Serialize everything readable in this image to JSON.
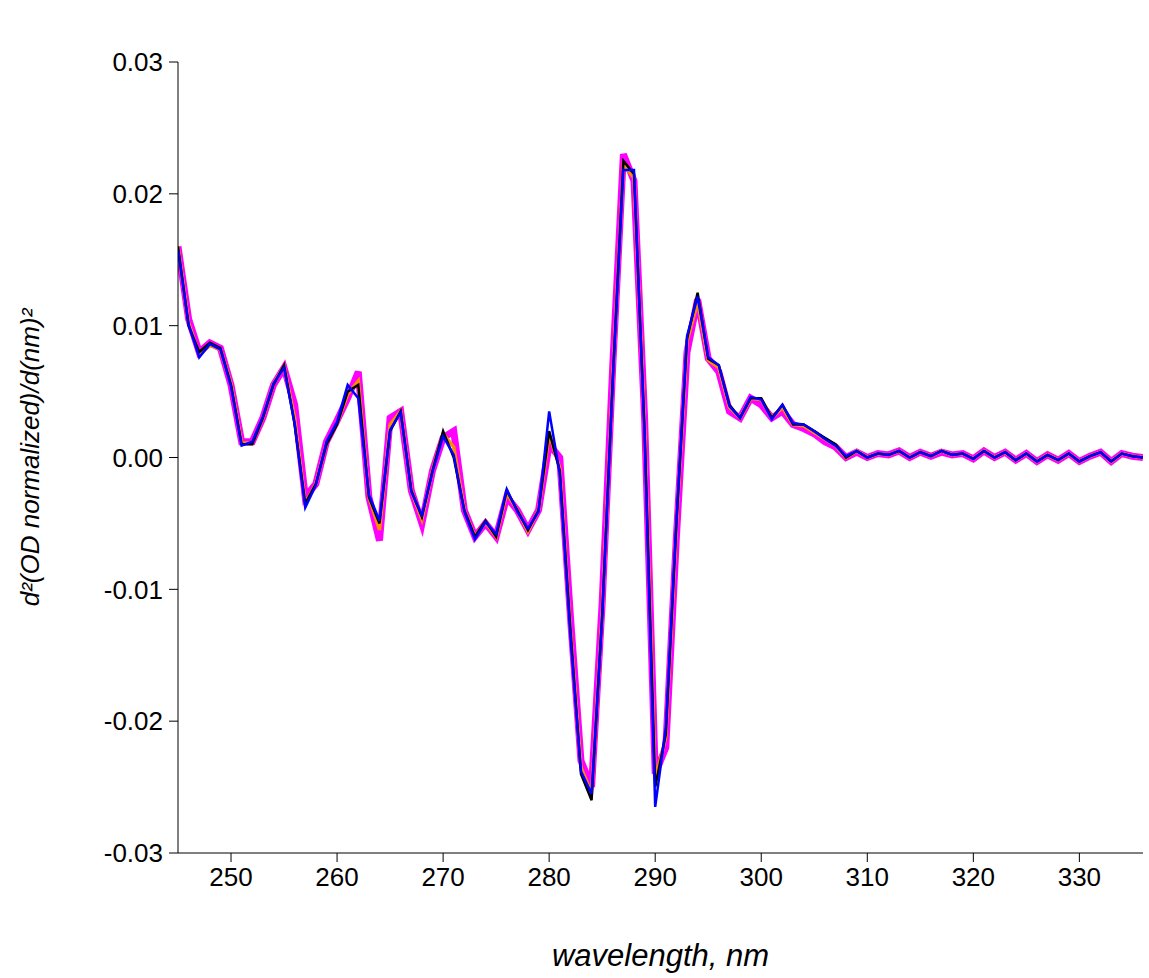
{
  "chart_data": {
    "type": "line",
    "x_label": "wavelength, nm",
    "y_label": "d²(OD normalized)/d(nm)²",
    "x": [
      245,
      246,
      247,
      248,
      249,
      250,
      251,
      252,
      253,
      254,
      255,
      256,
      257,
      258,
      259,
      260,
      261,
      262,
      263,
      264,
      265,
      266,
      267,
      268,
      269,
      270,
      271,
      272,
      273,
      274,
      275,
      276,
      277,
      278,
      279,
      280,
      281,
      282,
      283,
      284,
      285,
      286,
      287,
      288,
      289,
      290,
      291,
      292,
      293,
      294,
      295,
      296,
      297,
      298,
      299,
      300,
      301,
      302,
      303,
      304,
      305,
      306,
      307,
      308,
      309,
      310,
      311,
      312,
      313,
      314,
      315,
      316,
      317,
      318,
      319,
      320,
      321,
      322,
      323,
      324,
      325,
      326,
      327,
      328,
      329,
      330,
      331,
      332,
      333,
      334,
      335,
      336
    ],
    "series": [
      {
        "color": "#ff00ff",
        "values": [
          0.016,
          0.0105,
          0.008,
          0.0087,
          0.0083,
          0.0055,
          0.0012,
          0.0012,
          0.003,
          0.0055,
          0.0068,
          0.004,
          -0.003,
          -0.002,
          0.0012,
          0.0028,
          0.0045,
          0.0065,
          -0.003,
          -0.0063,
          0.003,
          0.0035,
          -0.0025,
          -0.005,
          -0.001,
          0.0015,
          0.002,
          -0.004,
          -0.006,
          -0.005,
          -0.006,
          -0.003,
          -0.004,
          -0.0055,
          -0.004,
          0.001,
          0.0,
          -0.012,
          -0.023,
          -0.025,
          -0.011,
          0.007,
          0.023,
          0.021,
          0.003,
          -0.024,
          -0.022,
          -0.006,
          0.008,
          0.012,
          0.0075,
          0.0065,
          0.0035,
          0.003,
          0.0045,
          0.004,
          0.003,
          0.0035,
          0.0025,
          0.0022,
          0.0018,
          0.0012,
          0.0008,
          0.0,
          0.0004,
          0.0,
          0.0003,
          0.0002,
          0.0005,
          0.0,
          0.0004,
          0.0001,
          0.0004,
          0.0002,
          0.0003,
          -0.0001,
          0.0005,
          0.0,
          0.0004,
          -0.0002,
          0.0003,
          -0.0003,
          0.0002,
          -0.0002,
          0.0003,
          -0.0003,
          0.0001,
          0.0004,
          -0.0003,
          0.0003,
          0.0001,
          0.0
        ]
      },
      {
        "color": "#ff8c00",
        "values": [
          0.016,
          0.0102,
          0.0078,
          0.0085,
          0.0082,
          0.0056,
          0.0011,
          0.0011,
          0.003,
          0.0056,
          0.0069,
          0.003,
          -0.0035,
          -0.002,
          0.0011,
          0.0026,
          0.0048,
          0.0058,
          -0.003,
          -0.0055,
          0.0025,
          0.0035,
          -0.0025,
          -0.0047,
          -0.001,
          0.0018,
          0.0008,
          -0.004,
          -0.006,
          -0.0049,
          -0.006,
          -0.0027,
          -0.004,
          -0.0056,
          -0.004,
          0.0018,
          -0.0008,
          -0.013,
          -0.0235,
          -0.0255,
          -0.0118,
          0.0062,
          0.0222,
          0.0212,
          0.0025,
          -0.0245,
          -0.0212,
          -0.0052,
          0.0088,
          0.0118,
          0.0074,
          0.0068,
          0.0038,
          0.003,
          0.0045,
          0.0044,
          0.003,
          0.0038,
          0.0025,
          0.0024,
          0.0019,
          0.0014,
          0.0009,
          0.0,
          0.0005,
          0.0,
          0.0003,
          0.0002,
          0.0005,
          0.0,
          0.0004,
          0.0001,
          0.0005,
          0.0002,
          0.0003,
          -0.0001,
          0.0005,
          0.0,
          0.0004,
          -0.0002,
          0.0003,
          -0.0003,
          0.0002,
          -0.0002,
          0.0003,
          -0.0003,
          0.0001,
          0.0004,
          -0.0003,
          0.0003,
          0.0001,
          0.0
        ]
      },
      {
        "color": "#000000",
        "values": [
          0.016,
          0.01,
          0.008,
          0.0087,
          0.0083,
          0.0055,
          0.001,
          0.001,
          0.003,
          0.0055,
          0.007,
          0.0025,
          -0.0035,
          -0.002,
          0.001,
          0.0025,
          0.005,
          0.0055,
          -0.003,
          -0.005,
          0.002,
          0.0035,
          -0.0025,
          -0.0045,
          -0.001,
          0.002,
          0.0,
          -0.004,
          -0.006,
          -0.0048,
          -0.006,
          -0.0025,
          -0.004,
          -0.0055,
          -0.004,
          0.002,
          -0.001,
          -0.013,
          -0.024,
          -0.026,
          -0.012,
          0.006,
          0.0225,
          0.0215,
          0.002,
          -0.025,
          -0.021,
          -0.005,
          0.009,
          0.0125,
          0.0075,
          0.007,
          0.004,
          0.003,
          0.0045,
          0.0045,
          0.003,
          0.004,
          0.0025,
          0.0025,
          0.002,
          0.0015,
          0.001,
          0.0,
          0.0005,
          0.0,
          0.0003,
          0.0002,
          0.0005,
          0.0,
          0.0004,
          0.0001,
          0.0005,
          0.0002,
          0.0003,
          -0.0001,
          0.0005,
          0.0,
          0.0004,
          -0.0002,
          0.0003,
          -0.0003,
          0.0002,
          -0.0002,
          0.0003,
          -0.0003,
          0.0001,
          0.0004,
          -0.0003,
          0.0003,
          0.0001,
          0.0
        ]
      },
      {
        "color": "#0000ff",
        "values": [
          0.0158,
          0.0101,
          0.0076,
          0.0086,
          0.0082,
          0.0054,
          0.0009,
          0.0012,
          0.0031,
          0.0056,
          0.0068,
          0.0026,
          -0.0038,
          -0.0021,
          0.0012,
          0.0027,
          0.0055,
          0.0045,
          -0.0028,
          -0.0048,
          0.0021,
          0.0034,
          -0.0026,
          -0.0044,
          -0.0011,
          0.0016,
          0.0002,
          -0.0041,
          -0.0062,
          -0.0049,
          -0.0058,
          -0.0024,
          -0.0041,
          -0.0054,
          -0.0041,
          0.0035,
          -0.0012,
          -0.0135,
          -0.0238,
          -0.0255,
          -0.0121,
          0.0058,
          0.0218,
          0.0218,
          0.0018,
          -0.0265,
          -0.0205,
          -0.0048,
          0.0092,
          0.0122,
          0.0076,
          0.007,
          0.0039,
          0.003,
          0.0046,
          0.0044,
          0.0029,
          0.004,
          0.0026,
          0.0025,
          0.002,
          0.0014,
          0.0009,
          0.0001,
          0.0005,
          0.0,
          0.0003,
          0.0002,
          0.0005,
          0.0,
          0.0004,
          0.0001,
          0.0005,
          0.0002,
          0.0003,
          -0.0001,
          0.0005,
          0.0,
          0.0004,
          -0.0002,
          0.0003,
          -0.0003,
          0.0002,
          -0.0002,
          0.0003,
          -0.0003,
          0.0001,
          0.0004,
          -0.0003,
          0.0003,
          0.0001,
          0.0
        ]
      }
    ],
    "xlim": [
      245,
      336
    ],
    "xticks": [
      250,
      260,
      270,
      280,
      290,
      300,
      310,
      320,
      330
    ],
    "ylim": [
      -0.03,
      0.03
    ],
    "yticks": [
      -0.03,
      -0.02,
      -0.01,
      {
        "value": 0,
        "label": "0.00"
      },
      0.01,
      0.02,
      0.03
    ],
    "grid": false,
    "marker": "none",
    "line_style": "solid"
  }
}
